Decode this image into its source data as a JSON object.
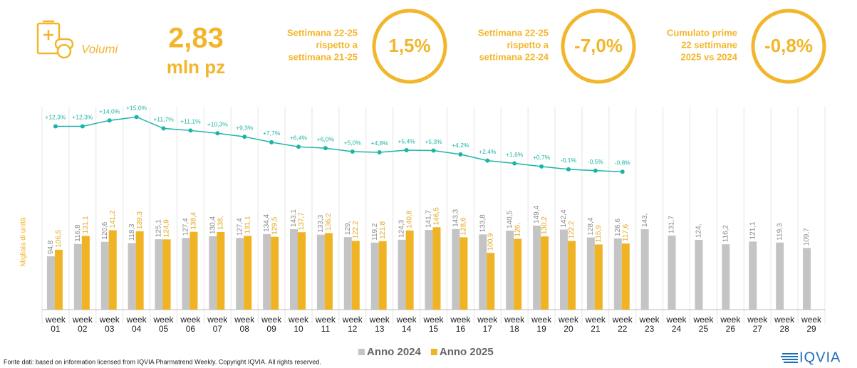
{
  "header": {
    "section": "Volumi",
    "volume": "2,83",
    "volume_unit": "mln pz",
    "kpis": [
      {
        "label_lines": [
          "Settimana 22-25",
          "rispetto a",
          "settimana 21-25"
        ],
        "value": "1,5%"
      },
      {
        "label_lines": [
          "Settimana 22-25",
          "rispetto a",
          "settimana 22-24"
        ],
        "value": "-7,0%"
      },
      {
        "label_lines": [
          "Cumulato prime",
          "22 settimane",
          "2025 vs 2024"
        ],
        "value": "-0,8%"
      }
    ]
  },
  "chart_data": {
    "type": "bar",
    "ylabel": "Migliaia di unità",
    "ylim": [
      0,
      200
    ],
    "y2lim": [
      -10,
      20
    ],
    "categories": [
      "week 01",
      "week 02",
      "week 03",
      "week 04",
      "week 05",
      "week 06",
      "week 07",
      "week 08",
      "week 09",
      "week 10",
      "week 11",
      "week 12",
      "week 13",
      "week 14",
      "week 15",
      "week 16",
      "week 17",
      "week 18",
      "week 19",
      "week 20",
      "week 21",
      "week 22",
      "week 23",
      "week 24",
      "week 25",
      "week 26",
      "week 27",
      "week 28",
      "week 29"
    ],
    "series": [
      {
        "name": "Anno 2024",
        "color": "#c4c4c4",
        "label_color": "#8a8a8a",
        "values": [
          94.8,
          116.8,
          120.6,
          118.3,
          125.1,
          127.4,
          130.4,
          127.4,
          134.4,
          143.1,
          133.3,
          129,
          119.2,
          124.3,
          141.7,
          143.3,
          133.8,
          140.5,
          149.4,
          142.4,
          128.4,
          126.6,
          143,
          131.7,
          124,
          116.2,
          121.1,
          119.3,
          109.7
        ],
        "value_labels": [
          "94,8",
          "116,8",
          "120,6",
          "118,3",
          "125,1",
          "127,4",
          "130,4",
          "127,4",
          "134,4",
          "143,1",
          "133,3",
          "129,",
          "119,2",
          "124,3",
          "141,7",
          "143,3",
          "133,8",
          "140,5",
          "149,4",
          "142,4",
          "128,4",
          "126,6",
          "143,",
          "131,7",
          "124,",
          "116,2",
          "121,1",
          "119,3",
          "109,7"
        ]
      },
      {
        "name": "Anno 2025",
        "color": "#f0b323",
        "label_color": "#e0a81c",
        "values": [
          106.5,
          131.1,
          141.2,
          139.3,
          124.9,
          138.4,
          138,
          131.1,
          129.5,
          137.7,
          136.2,
          122.2,
          121.8,
          140.8,
          146.5,
          128.6,
          100.9,
          126,
          130.2,
          122.2,
          115.9,
          117.6,
          null,
          null,
          null,
          null,
          null,
          null,
          null
        ],
        "value_labels": [
          "106,5",
          "131,1",
          "141,2",
          "139,3",
          "124,9",
          "138,4",
          "138,",
          "131,1",
          "129,5",
          "137,7",
          "136,2",
          "122,2",
          "121,8",
          "140,8",
          "146,5",
          "128,6",
          "100,9",
          "126,",
          "130,2",
          "122,2",
          "115,9",
          "117,6",
          null,
          null,
          null,
          null,
          null,
          null,
          null
        ]
      },
      {
        "name": "Variazione",
        "type": "line",
        "axis": "y2",
        "color": "#1bb5a5",
        "values": [
          12.3,
          12.3,
          14.0,
          15.0,
          11.7,
          11.1,
          10.3,
          9.3,
          7.7,
          6.4,
          6.0,
          5.0,
          4.8,
          5.4,
          5.3,
          4.2,
          2.4,
          1.6,
          0.7,
          -0.1,
          -0.5,
          -0.8,
          null,
          null,
          null,
          null,
          null,
          null,
          null
        ],
        "value_labels": [
          "+12,3%",
          "+12,3%",
          "+14,0%",
          "+15,0%",
          "+11,7%",
          "+11,1%",
          "+10,3%",
          "+9,3%",
          "+7,7%",
          "+6,4%",
          "+6,0%",
          "+5,0%",
          "+4,8%",
          "+5,4%",
          "+5,3%",
          "+4,2%",
          "+2,4%",
          "+1,6%",
          "+0,7%",
          "-0,1%",
          "-0,5%",
          "-0,8%",
          null,
          null,
          null,
          null,
          null,
          null,
          null
        ]
      }
    ]
  },
  "footer": {
    "source": "Fonte dati: based on information licensed from IQVIA Pharmatrend Weekly. Copyright IQVIA. All rights reserved.",
    "logo": "IQVIA"
  }
}
